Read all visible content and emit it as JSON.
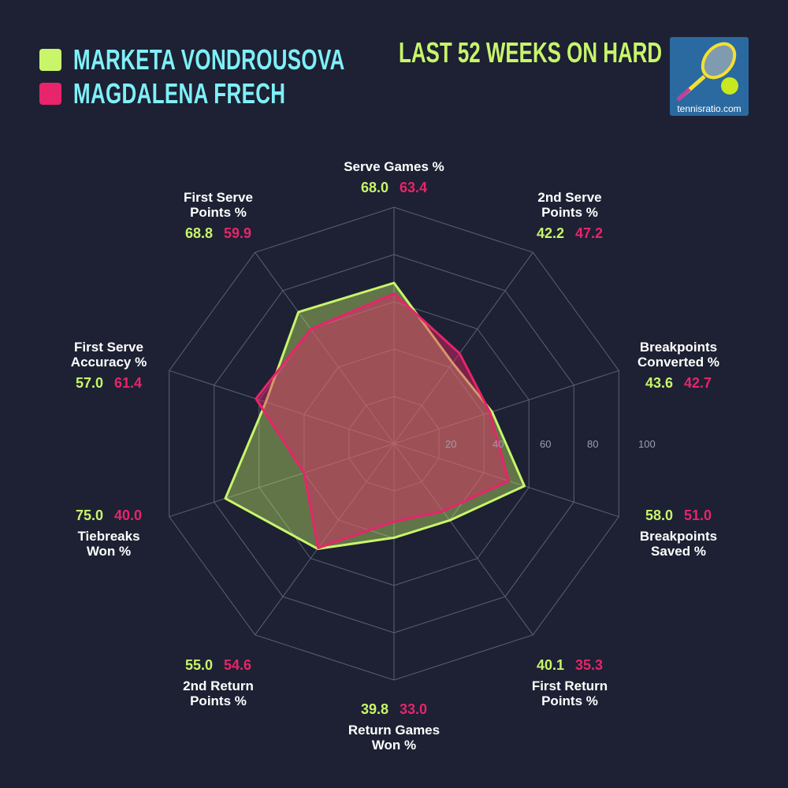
{
  "legend": [
    {
      "name": "MARKETA VONDROUSOVA",
      "color": "#c8f56a"
    },
    {
      "name": "MAGDALENA FRECH",
      "color": "#e8246a"
    }
  ],
  "title": "LAST 52 WEEKS ON HARD",
  "logo": {
    "text": "tennisratio.com"
  },
  "chart_data": {
    "type": "radar",
    "title": "LAST 52 WEEKS ON HARD",
    "range": [
      0,
      100
    ],
    "ring_ticks": [
      "20",
      "40",
      "60",
      "80",
      "100"
    ],
    "axes": [
      {
        "l1": "Serve Games %",
        "l2": ""
      },
      {
        "l1": "2nd Serve",
        "l2": "Points %"
      },
      {
        "l1": "Breakpoints",
        "l2": "Converted %"
      },
      {
        "l1": "Breakpoints",
        "l2": "Saved %"
      },
      {
        "l1": "First Return",
        "l2": "Points %"
      },
      {
        "l1": "Return Games",
        "l2": "Won %"
      },
      {
        "l1": "2nd Return",
        "l2": "Points %"
      },
      {
        "l1": "Tiebreaks",
        "l2": "Won %"
      },
      {
        "l1": "First Serve",
        "l2": "Accuracy %"
      },
      {
        "l1": "First Serve",
        "l2": "Points %"
      }
    ],
    "series": [
      {
        "name": "MARKETA VONDROUSOVA",
        "color": "#c8f56a",
        "values": [
          "68.0",
          "42.2",
          "43.6",
          "58.0",
          "40.1",
          "39.8",
          "55.0",
          "75.0",
          "57.0",
          "68.8"
        ]
      },
      {
        "name": "MAGDALENA FRECH",
        "color": "#e8246a",
        "values": [
          "63.4",
          "47.2",
          "42.7",
          "51.0",
          "35.3",
          "33.0",
          "54.6",
          "40.0",
          "61.4",
          "59.9"
        ]
      }
    ]
  }
}
